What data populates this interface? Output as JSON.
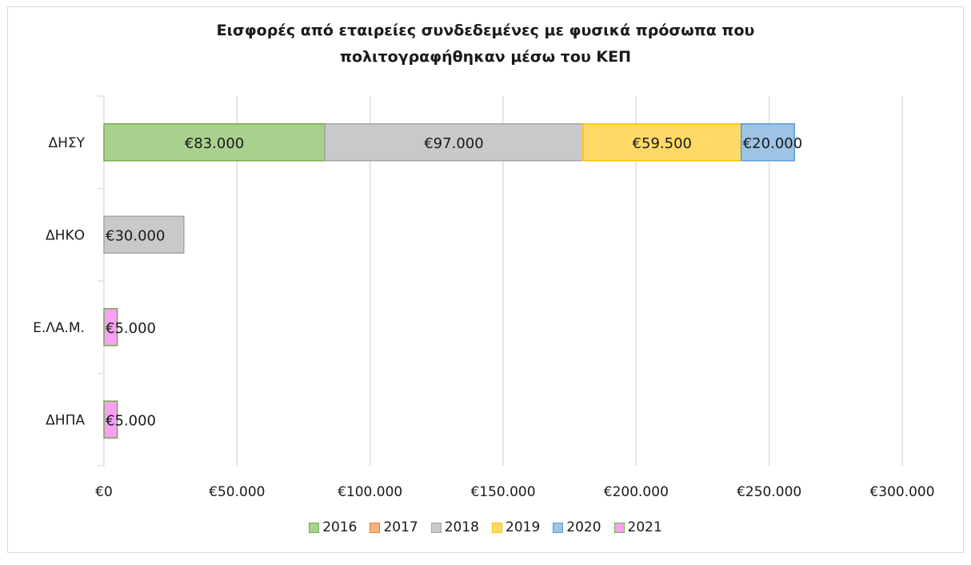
{
  "chart_data": {
    "type": "bar",
    "orientation": "horizontal",
    "stacked": true,
    "title_lines": [
      "Εισφορές από εταιρείες συνδεδεμένες με φυσικά πρόσωπα που",
      "πολιτογραφήθηκαν  μέσω του ΚΕΠ"
    ],
    "categories": [
      "ΔΗΣΥ",
      "ΔΗΚΟ",
      "Ε.ΛΑ.Μ.",
      "ΔΗΠΑ"
    ],
    "series": [
      {
        "name": "2016",
        "color": "#a9d18e",
        "border": "#70ad47",
        "values": [
          83000,
          0,
          0,
          0
        ],
        "labels": [
          "€83.000",
          "",
          "",
          ""
        ]
      },
      {
        "name": "2017",
        "color": "#f4b183",
        "border": "#ed7d31",
        "values": [
          0,
          0,
          0,
          0
        ],
        "labels": [
          "",
          "",
          "",
          ""
        ]
      },
      {
        "name": "2018",
        "color": "#c9c9c9",
        "border": "#a5a5a5",
        "values": [
          97000,
          30000,
          0,
          0
        ],
        "labels": [
          "€97.000",
          "€30.000",
          "",
          ""
        ]
      },
      {
        "name": "2019",
        "color": "#ffd966",
        "border": "#ffc000",
        "values": [
          59500,
          0,
          0,
          0
        ],
        "labels": [
          "€59.500",
          "",
          "",
          ""
        ]
      },
      {
        "name": "2020",
        "color": "#9dc3e6",
        "border": "#5b9bd5",
        "values": [
          20000,
          0,
          0,
          0
        ],
        "labels": [
          "€20.000",
          "",
          "",
          ""
        ]
      },
      {
        "name": "2021",
        "color": "#f9a0f5",
        "border": "#70ad47",
        "values": [
          0,
          0,
          5000,
          5000
        ],
        "labels": [
          "",
          "",
          "€5.000",
          "€5.000"
        ]
      }
    ],
    "xlim": [
      0,
      300000
    ],
    "x_ticks": [
      0,
      50000,
      100000,
      150000,
      200000,
      250000,
      300000
    ],
    "x_tick_labels": [
      "€0",
      "€50.000",
      "€100.000",
      "€150.000",
      "€200.000",
      "€250.000",
      "€300.000"
    ],
    "grid": "vertical",
    "legend_position": "bottom"
  }
}
